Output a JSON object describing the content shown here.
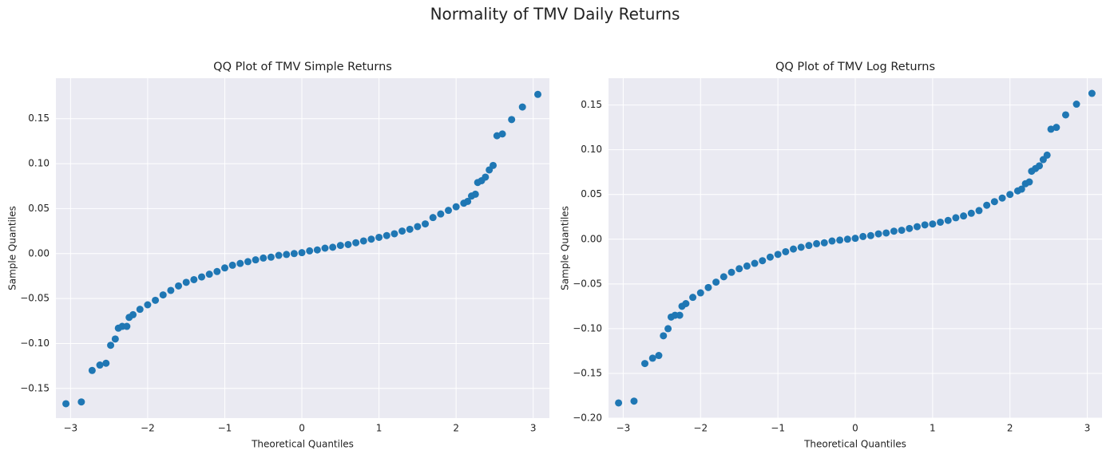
{
  "title": "Normality of TMV Daily Returns",
  "chart_data": [
    {
      "type": "scatter",
      "title": "QQ Plot of TMV Simple Returns",
      "xlabel": "Theoretical Quantiles",
      "ylabel": "Sample Quantiles",
      "color": "#1f77b4",
      "grid": true,
      "xlim": [
        -3.19,
        3.21
      ],
      "ylim": [
        -0.183,
        0.195
      ],
      "xticks": [
        {
          "value": -3,
          "label": "−3"
        },
        {
          "value": -2,
          "label": "−2"
        },
        {
          "value": -1,
          "label": "−1"
        },
        {
          "value": 0,
          "label": "0"
        },
        {
          "value": 1,
          "label": "1"
        },
        {
          "value": 2,
          "label": "2"
        },
        {
          "value": 3,
          "label": "3"
        }
      ],
      "yticks": [
        {
          "value": -0.15,
          "label": "−0.15"
        },
        {
          "value": -0.1,
          "label": "−0.10"
        },
        {
          "value": -0.05,
          "label": "−0.05"
        },
        {
          "value": 0,
          "label": "0.00"
        },
        {
          "value": 0.05,
          "label": "0.05"
        },
        {
          "value": 0.1,
          "label": "0.10"
        },
        {
          "value": 0.15,
          "label": "0.15"
        }
      ],
      "x": [
        -3.06,
        -2.86,
        -2.72,
        -2.62,
        -2.54,
        -2.48,
        -2.42,
        -2.38,
        -2.33,
        -2.27,
        -2.24,
        -2.19,
        -2.1,
        -2.0,
        -1.9,
        -1.8,
        -1.7,
        -1.6,
        -1.5,
        -1.4,
        -1.3,
        -1.2,
        -1.1,
        -1.0,
        -0.9,
        -0.8,
        -0.7,
        -0.6,
        -0.5,
        -0.4,
        -0.3,
        -0.2,
        -0.1,
        0.0,
        0.1,
        0.2,
        0.3,
        0.4,
        0.5,
        0.6,
        0.7,
        0.8,
        0.9,
        1.0,
        1.1,
        1.2,
        1.3,
        1.4,
        1.5,
        1.6,
        1.7,
        1.8,
        1.9,
        2.0,
        2.1,
        2.15,
        2.2,
        2.25,
        2.28,
        2.33,
        2.38,
        2.43,
        2.48,
        2.53,
        2.6,
        2.72,
        2.86,
        3.06
      ],
      "values": [
        -0.167,
        -0.165,
        -0.13,
        -0.124,
        -0.122,
        -0.102,
        -0.095,
        -0.083,
        -0.081,
        -0.081,
        -0.071,
        -0.068,
        -0.062,
        -0.057,
        -0.052,
        -0.046,
        -0.041,
        -0.036,
        -0.032,
        -0.029,
        -0.026,
        -0.023,
        -0.02,
        -0.016,
        -0.013,
        -0.011,
        -0.009,
        -0.007,
        -0.005,
        -0.004,
        -0.002,
        -0.001,
        0.0,
        0.001,
        0.003,
        0.004,
        0.006,
        0.007,
        0.009,
        0.01,
        0.012,
        0.014,
        0.016,
        0.018,
        0.02,
        0.022,
        0.025,
        0.027,
        0.03,
        0.033,
        0.04,
        0.044,
        0.048,
        0.052,
        0.056,
        0.058,
        0.064,
        0.066,
        0.079,
        0.081,
        0.085,
        0.093,
        0.098,
        0.131,
        0.133,
        0.149,
        0.163,
        0.177
      ]
    },
    {
      "type": "scatter",
      "title": "QQ Plot of TMV Log Returns",
      "xlabel": "Theoretical Quantiles",
      "ylabel": "Sample Quantiles",
      "color": "#1f77b4",
      "grid": true,
      "xlim": [
        -3.19,
        3.19
      ],
      "ylim": [
        -0.2,
        0.18
      ],
      "xticks": [
        {
          "value": -3,
          "label": "−3"
        },
        {
          "value": -2,
          "label": "−2"
        },
        {
          "value": -1,
          "label": "−1"
        },
        {
          "value": 0,
          "label": "0"
        },
        {
          "value": 1,
          "label": "1"
        },
        {
          "value": 2,
          "label": "2"
        },
        {
          "value": 3,
          "label": "3"
        }
      ],
      "yticks": [
        {
          "value": -0.2,
          "label": "−0.20"
        },
        {
          "value": -0.15,
          "label": "−0.15"
        },
        {
          "value": -0.1,
          "label": "−0.10"
        },
        {
          "value": -0.05,
          "label": "−0.05"
        },
        {
          "value": 0,
          "label": "0.00"
        },
        {
          "value": 0.05,
          "label": "0.05"
        },
        {
          "value": 0.1,
          "label": "0.10"
        },
        {
          "value": 0.15,
          "label": "0.15"
        }
      ],
      "x": [
        -3.06,
        -2.86,
        -2.72,
        -2.62,
        -2.54,
        -2.48,
        -2.42,
        -2.38,
        -2.33,
        -2.27,
        -2.24,
        -2.19,
        -2.1,
        -2.0,
        -1.9,
        -1.8,
        -1.7,
        -1.6,
        -1.5,
        -1.4,
        -1.3,
        -1.2,
        -1.1,
        -1.0,
        -0.9,
        -0.8,
        -0.7,
        -0.6,
        -0.5,
        -0.4,
        -0.3,
        -0.2,
        -0.1,
        0.0,
        0.1,
        0.2,
        0.3,
        0.4,
        0.5,
        0.6,
        0.7,
        0.8,
        0.9,
        1.0,
        1.1,
        1.2,
        1.3,
        1.4,
        1.5,
        1.6,
        1.7,
        1.8,
        1.9,
        2.0,
        2.1,
        2.15,
        2.2,
        2.25,
        2.28,
        2.33,
        2.38,
        2.43,
        2.48,
        2.53,
        2.6,
        2.72,
        2.86,
        3.06
      ],
      "values": [
        -0.183,
        -0.181,
        -0.139,
        -0.133,
        -0.13,
        -0.108,
        -0.1,
        -0.087,
        -0.085,
        -0.085,
        -0.075,
        -0.072,
        -0.065,
        -0.06,
        -0.054,
        -0.048,
        -0.042,
        -0.037,
        -0.033,
        -0.03,
        -0.027,
        -0.024,
        -0.02,
        -0.017,
        -0.014,
        -0.011,
        -0.009,
        -0.007,
        -0.005,
        -0.004,
        -0.002,
        -0.001,
        0.0,
        0.001,
        0.003,
        0.004,
        0.006,
        0.007,
        0.009,
        0.01,
        0.012,
        0.014,
        0.016,
        0.017,
        0.019,
        0.021,
        0.024,
        0.026,
        0.029,
        0.032,
        0.038,
        0.042,
        0.046,
        0.05,
        0.054,
        0.056,
        0.062,
        0.064,
        0.076,
        0.079,
        0.082,
        0.089,
        0.094,
        0.123,
        0.125,
        0.139,
        0.151,
        0.163
      ]
    }
  ]
}
